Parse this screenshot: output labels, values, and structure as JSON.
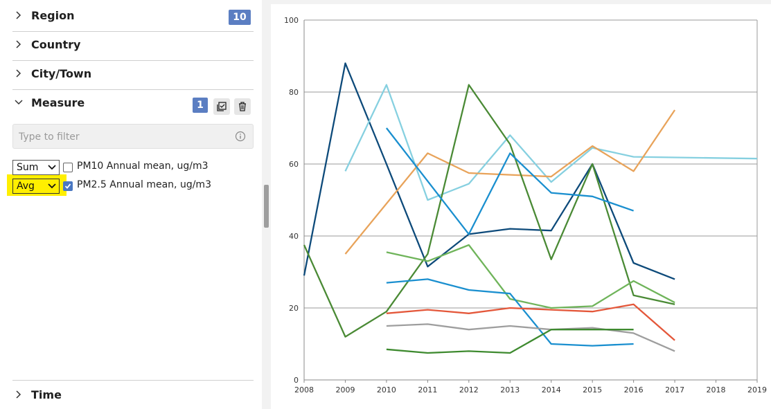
{
  "sidebar": {
    "sections": [
      {
        "title": "Region",
        "badge": "10",
        "expanded": false
      },
      {
        "title": "Country",
        "expanded": false
      },
      {
        "title": "City/Town",
        "expanded": false
      },
      {
        "title": "Measure",
        "badge": "1",
        "expanded": true
      }
    ],
    "filter": {
      "placeholder": "Type to filter",
      "value": ""
    },
    "measures": [
      {
        "aggregation": "Sum",
        "label": "PM10 Annual mean, ug/m3",
        "checked": false
      },
      {
        "aggregation": "Avg",
        "label": "PM2.5 Annual mean, ug/m3",
        "checked": true,
        "highlight": "#ffef00"
      }
    ],
    "bottom_section": {
      "title": "Time",
      "expanded": false
    },
    "icons": {
      "collapsed": "chevron-right-icon",
      "expanded": "chevron-down-icon",
      "select_all": "select-all-icon",
      "clear": "trash-icon",
      "info": "info-icon"
    }
  },
  "chart_data": {
    "type": "line",
    "title": "",
    "xlabel": "",
    "ylabel": "",
    "xlim": [
      2008,
      2019
    ],
    "ylim": [
      0,
      100
    ],
    "xticks": [
      "2008",
      "2009",
      "2010",
      "2011",
      "2012",
      "2013",
      "2014",
      "2015",
      "2016",
      "2017",
      "2018",
      "2019"
    ],
    "yticks": [
      "0",
      "20",
      "40",
      "60",
      "80",
      "100"
    ],
    "grid": true,
    "legend": "none",
    "series": [
      {
        "color": "#0d4a7a",
        "points": [
          [
            2008,
            29
          ],
          [
            2009,
            88
          ],
          [
            2010,
            60
          ],
          [
            2011,
            31.5
          ],
          [
            2012,
            40.5
          ],
          [
            2013,
            42
          ],
          [
            2014,
            41.5
          ],
          [
            2015,
            60
          ],
          [
            2016,
            32.5
          ],
          [
            2017,
            28
          ]
        ]
      },
      {
        "color": "#86d0e0",
        "points": [
          [
            2009,
            58
          ],
          [
            2010,
            82
          ],
          [
            2011,
            50
          ],
          [
            2012,
            54.5
          ],
          [
            2013,
            68
          ],
          [
            2014,
            55
          ],
          [
            2015,
            64.5
          ],
          [
            2016,
            62
          ],
          [
            2019,
            61.5
          ]
        ]
      },
      {
        "color": "#e8a35a",
        "points": [
          [
            2009,
            35
          ],
          [
            2011,
            63
          ],
          [
            2012,
            57.5
          ],
          [
            2013,
            57
          ],
          [
            2014,
            56.5
          ],
          [
            2015,
            65
          ],
          [
            2016,
            58
          ],
          [
            2017,
            75
          ]
        ]
      },
      {
        "color": "#4a8a35",
        "points": [
          [
            2008,
            37.5
          ],
          [
            2009,
            12
          ],
          [
            2010,
            19
          ],
          [
            2011,
            35
          ],
          [
            2012,
            82
          ],
          [
            2013,
            65.5
          ],
          [
            2014,
            33.5
          ],
          [
            2015,
            60
          ],
          [
            2016,
            23.5
          ],
          [
            2017,
            21
          ]
        ]
      },
      {
        "color": "#1a8fcf",
        "points": [
          [
            2010,
            70
          ],
          [
            2012,
            40.5
          ],
          [
            2013,
            63
          ],
          [
            2014,
            52
          ],
          [
            2015,
            51
          ],
          [
            2016,
            47
          ]
        ]
      },
      {
        "color": "#6fb45a",
        "points": [
          [
            2010,
            35.5
          ],
          [
            2011,
            33
          ],
          [
            2012,
            37.5
          ],
          [
            2013,
            22.5
          ],
          [
            2014,
            20
          ],
          [
            2015,
            20.5
          ],
          [
            2016,
            27.5
          ],
          [
            2017,
            21.5
          ]
        ]
      },
      {
        "color": "#1a8fcf",
        "points": [
          [
            2010,
            27
          ],
          [
            2011,
            28
          ],
          [
            2012,
            25
          ],
          [
            2013,
            24
          ],
          [
            2014,
            10
          ],
          [
            2015,
            9.5
          ],
          [
            2016,
            10
          ]
        ]
      },
      {
        "color": "#e4573a",
        "points": [
          [
            2010,
            18.5
          ],
          [
            2011,
            19.5
          ],
          [
            2012,
            18.5
          ],
          [
            2013,
            20
          ],
          [
            2014,
            19.5
          ],
          [
            2015,
            19
          ],
          [
            2016,
            21
          ],
          [
            2017,
            11
          ]
        ]
      },
      {
        "color": "#9e9e9e",
        "points": [
          [
            2010,
            15
          ],
          [
            2011,
            15.5
          ],
          [
            2012,
            14
          ],
          [
            2013,
            15
          ],
          [
            2014,
            14
          ],
          [
            2015,
            14.5
          ],
          [
            2016,
            13
          ],
          [
            2017,
            8
          ]
        ]
      },
      {
        "color": "#3e8a2f",
        "points": [
          [
            2010,
            8.5
          ],
          [
            2011,
            7.5
          ],
          [
            2012,
            8
          ],
          [
            2013,
            7.5
          ],
          [
            2014,
            14
          ],
          [
            2015,
            14
          ],
          [
            2016,
            14
          ]
        ]
      }
    ]
  }
}
